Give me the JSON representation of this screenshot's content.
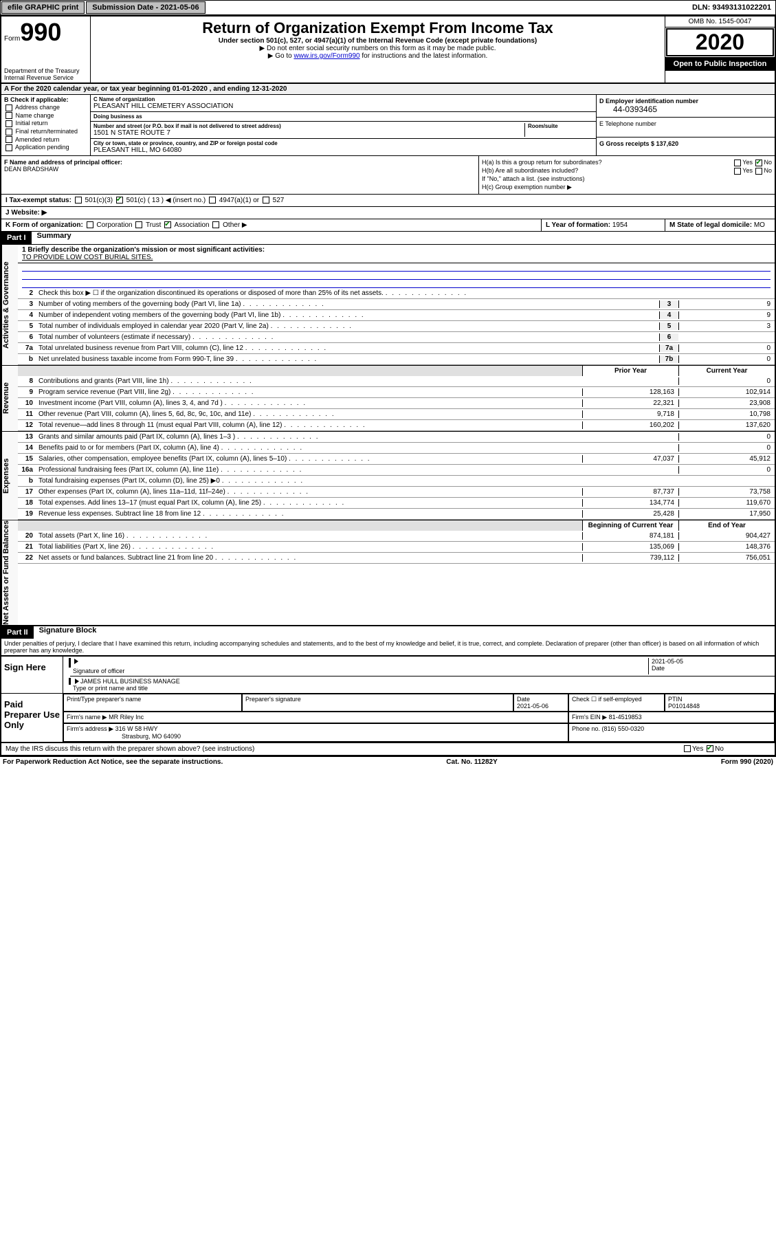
{
  "topbar": {
    "efile": "efile GRAPHIC print",
    "submission_label": "Submission Date - 2021-05-06",
    "dln": "DLN: 93493131022201"
  },
  "header": {
    "form_prefix": "Form",
    "form_num": "990",
    "dept": "Department of the Treasury\nInternal Revenue Service",
    "title": "Return of Organization Exempt From Income Tax",
    "sub": "Under section 501(c), 527, or 4947(a)(1) of the Internal Revenue Code (except private foundations)",
    "instr1": "▶ Do not enter social security numbers on this form as it may be made public.",
    "instr2_pre": "▶ Go to ",
    "instr2_link": "www.irs.gov/Form990",
    "instr2_post": " for instructions and the latest information.",
    "omb": "OMB No. 1545-0047",
    "year": "2020",
    "public": "Open to Public Inspection"
  },
  "taxyear": "A For the 2020 calendar year, or tax year beginning 01-01-2020  , and ending 12-31-2020",
  "checkB": {
    "label": "B Check if applicable:",
    "items": [
      "Address change",
      "Name change",
      "Initial return",
      "Final return/terminated",
      "Amended return",
      "Application pending"
    ]
  },
  "org": {
    "name_lbl": "C Name of organization",
    "name": "PLEASANT HILL CEMETERY ASSOCIATION",
    "dba_lbl": "Doing business as",
    "dba": "",
    "addr_lbl": "Number and street (or P.O. box if mail is not delivered to street address)",
    "room_lbl": "Room/suite",
    "addr": "1501 N STATE ROUTE 7",
    "city_lbl": "City or town, state or province, country, and ZIP or foreign postal code",
    "city": "PLEASANT HILL, MO  64080"
  },
  "ein": {
    "lbl": "D Employer identification number",
    "val": "44-0393465"
  },
  "phone_lbl": "E Telephone number",
  "receipts": {
    "lbl": "G Gross receipts $ ",
    "val": "137,620"
  },
  "officer": {
    "lbl": "F  Name and address of principal officer:",
    "name": "DEAN BRADSHAW"
  },
  "h": {
    "ha": "H(a)  Is this a group return for subordinates?",
    "hb": "H(b)  Are all subordinates included?",
    "hb_note": "If \"No,\" attach a list. (see instructions)",
    "hc": "H(c)  Group exemption number ▶",
    "yes": "Yes",
    "no": "No"
  },
  "tax_status": {
    "lbl": "I  Tax-exempt status:",
    "opts": [
      "501(c)(3)",
      "501(c) ( 13 ) ◀ (insert no.)",
      "4947(a)(1) or",
      "527"
    ]
  },
  "website": {
    "lbl": "J  Website: ▶"
  },
  "formtype": {
    "lbl": "K Form of organization:",
    "opts": [
      "Corporation",
      "Trust",
      "Association",
      "Other ▶"
    ],
    "checked_idx": 2
  },
  "yearform": {
    "lbl": "L Year of formation: ",
    "val": "1954"
  },
  "domicile": {
    "lbl": "M State of legal domicile:",
    "val": "MO"
  },
  "part1": {
    "num": "Part I",
    "title": "Summary"
  },
  "sidebars": {
    "gov": "Activities & Governance",
    "rev": "Revenue",
    "exp": "Expenses",
    "net": "Net Assets or Fund Balances"
  },
  "mission": {
    "lbl": "1  Briefly describe the organization's mission or most significant activities:",
    "txt": "TO PROVIDE LOW COST BURIAL SITES."
  },
  "lines_gov": [
    {
      "n": "2",
      "t": "Check this box ▶ ☐  if the organization discontinued its operations or disposed of more than 25% of its net assets."
    },
    {
      "n": "3",
      "t": "Number of voting members of the governing body (Part VI, line 1a)",
      "box": "3",
      "v": "9"
    },
    {
      "n": "4",
      "t": "Number of independent voting members of the governing body (Part VI, line 1b)",
      "box": "4",
      "v": "9"
    },
    {
      "n": "5",
      "t": "Total number of individuals employed in calendar year 2020 (Part V, line 2a)",
      "box": "5",
      "v": "3"
    },
    {
      "n": "6",
      "t": "Total number of volunteers (estimate if necessary)",
      "box": "6",
      "v": ""
    },
    {
      "n": "7a",
      "t": "Total unrelated business revenue from Part VIII, column (C), line 12",
      "box": "7a",
      "v": "0"
    },
    {
      "n": "b",
      "t": "Net unrelated business taxable income from Form 990-T, line 39",
      "box": "7b",
      "v": "0"
    }
  ],
  "col_headers": {
    "prior": "Prior Year",
    "current": "Current Year"
  },
  "lines_rev": [
    {
      "n": "8",
      "t": "Contributions and grants (Part VIII, line 1h)",
      "p": "",
      "c": "0"
    },
    {
      "n": "9",
      "t": "Program service revenue (Part VIII, line 2g)",
      "p": "128,163",
      "c": "102,914"
    },
    {
      "n": "10",
      "t": "Investment income (Part VIII, column (A), lines 3, 4, and 7d )",
      "p": "22,321",
      "c": "23,908"
    },
    {
      "n": "11",
      "t": "Other revenue (Part VIII, column (A), lines 5, 6d, 8c, 9c, 10c, and 11e)",
      "p": "9,718",
      "c": "10,798"
    },
    {
      "n": "12",
      "t": "Total revenue—add lines 8 through 11 (must equal Part VIII, column (A), line 12)",
      "p": "160,202",
      "c": "137,620"
    }
  ],
  "lines_exp": [
    {
      "n": "13",
      "t": "Grants and similar amounts paid (Part IX, column (A), lines 1–3 )",
      "p": "",
      "c": "0"
    },
    {
      "n": "14",
      "t": "Benefits paid to or for members (Part IX, column (A), line 4)",
      "p": "",
      "c": "0"
    },
    {
      "n": "15",
      "t": "Salaries, other compensation, employee benefits (Part IX, column (A), lines 5–10)",
      "p": "47,037",
      "c": "45,912"
    },
    {
      "n": "16a",
      "t": "Professional fundraising fees (Part IX, column (A), line 11e)",
      "p": "",
      "c": "0"
    },
    {
      "n": "b",
      "t": "Total fundraising expenses (Part IX, column (D), line 25) ▶0",
      "p": "—",
      "c": "—"
    },
    {
      "n": "17",
      "t": "Other expenses (Part IX, column (A), lines 11a–11d, 11f–24e)",
      "p": "87,737",
      "c": "73,758"
    },
    {
      "n": "18",
      "t": "Total expenses. Add lines 13–17 (must equal Part IX, column (A), line 25)",
      "p": "134,774",
      "c": "119,670"
    },
    {
      "n": "19",
      "t": "Revenue less expenses. Subtract line 18 from line 12",
      "p": "25,428",
      "c": "17,950"
    }
  ],
  "col_headers2": {
    "prior": "Beginning of Current Year",
    "current": "End of Year"
  },
  "lines_net": [
    {
      "n": "20",
      "t": "Total assets (Part X, line 16)",
      "p": "874,181",
      "c": "904,427"
    },
    {
      "n": "21",
      "t": "Total liabilities (Part X, line 26)",
      "p": "135,069",
      "c": "148,376"
    },
    {
      "n": "22",
      "t": "Net assets or fund balances. Subtract line 21 from line 20",
      "p": "739,112",
      "c": "756,051"
    }
  ],
  "part2": {
    "num": "Part II",
    "title": "Signature Block"
  },
  "declaration": "Under penalties of perjury, I declare that I have examined this return, including accompanying schedules and statements, and to the best of my knowledge and belief, it is true, correct, and complete. Declaration of preparer (other than officer) is based on all information of which preparer has any knowledge.",
  "sign": {
    "here": "Sign Here",
    "sig_officer": "Signature of officer",
    "date_lbl": "Date",
    "date": "2021-05-05",
    "name": "JAMES HULL  BUSINESS MANAGE",
    "type_lbl": "Type or print name and title"
  },
  "paid": {
    "label": "Paid Preparer Use Only",
    "cols": [
      "Print/Type preparer's name",
      "Preparer's signature",
      "Date",
      "Check ☐ if self-employed",
      "PTIN"
    ],
    "date": "2021-05-06",
    "ptin": "P01014848",
    "firm_lbl": "Firm's name   ▶ ",
    "firm": "MR Riley Inc",
    "ein_lbl": "Firm's EIN ▶ ",
    "ein": "81-4519853",
    "addr_lbl": "Firm's address ▶ ",
    "addr1": "316 W 58 HWY",
    "addr2": "Strasburg, MO  64090",
    "phone_lbl": "Phone no. ",
    "phone": "(816) 550-0320"
  },
  "discuss": "May the IRS discuss this return with the preparer shown above? (see instructions)",
  "footer": {
    "paperwork": "For Paperwork Reduction Act Notice, see the separate instructions.",
    "cat": "Cat. No. 11282Y",
    "form": "Form 990 (2020)"
  }
}
